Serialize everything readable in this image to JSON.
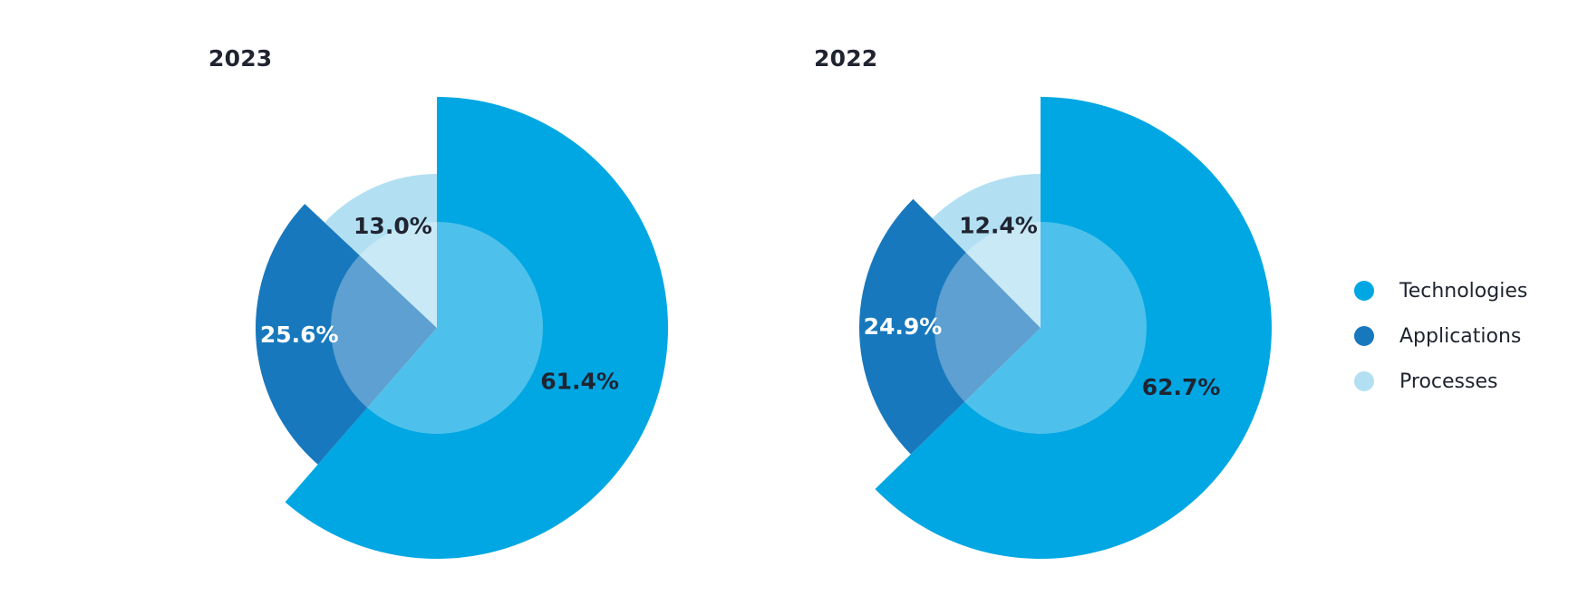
{
  "chart_data": [
    {
      "type": "pie",
      "title": "2023",
      "categories": [
        "Technologies",
        "Applications",
        "Processes"
      ],
      "values": [
        61.4,
        25.6,
        13.0
      ],
      "labels": [
        "61.4%",
        "25.6%",
        "13.0%"
      ],
      "colors": [
        "#00a7e3",
        "#1878bd",
        "#b2e0f2"
      ],
      "label_colors": [
        "#1f2430",
        "#ffffff",
        "#1f2430"
      ],
      "inner_circle": true
    },
    {
      "type": "pie",
      "title": "2022",
      "categories": [
        "Technologies",
        "Applications",
        "Processes"
      ],
      "values": [
        62.7,
        24.9,
        12.4
      ],
      "labels": [
        "62.7%",
        "24.9%",
        "12.4%"
      ],
      "colors": [
        "#00a7e3",
        "#1878bd",
        "#b2e0f2"
      ],
      "label_colors": [
        "#1f2430",
        "#ffffff",
        "#1f2430"
      ],
      "inner_circle": true
    }
  ],
  "legend": {
    "placement": "right",
    "items": [
      {
        "label": "Technologies",
        "color": "#00a7e3"
      },
      {
        "label": "Applications",
        "color": "#1878bd"
      },
      {
        "label": "Processes",
        "color": "#b2e0f2"
      }
    ]
  }
}
